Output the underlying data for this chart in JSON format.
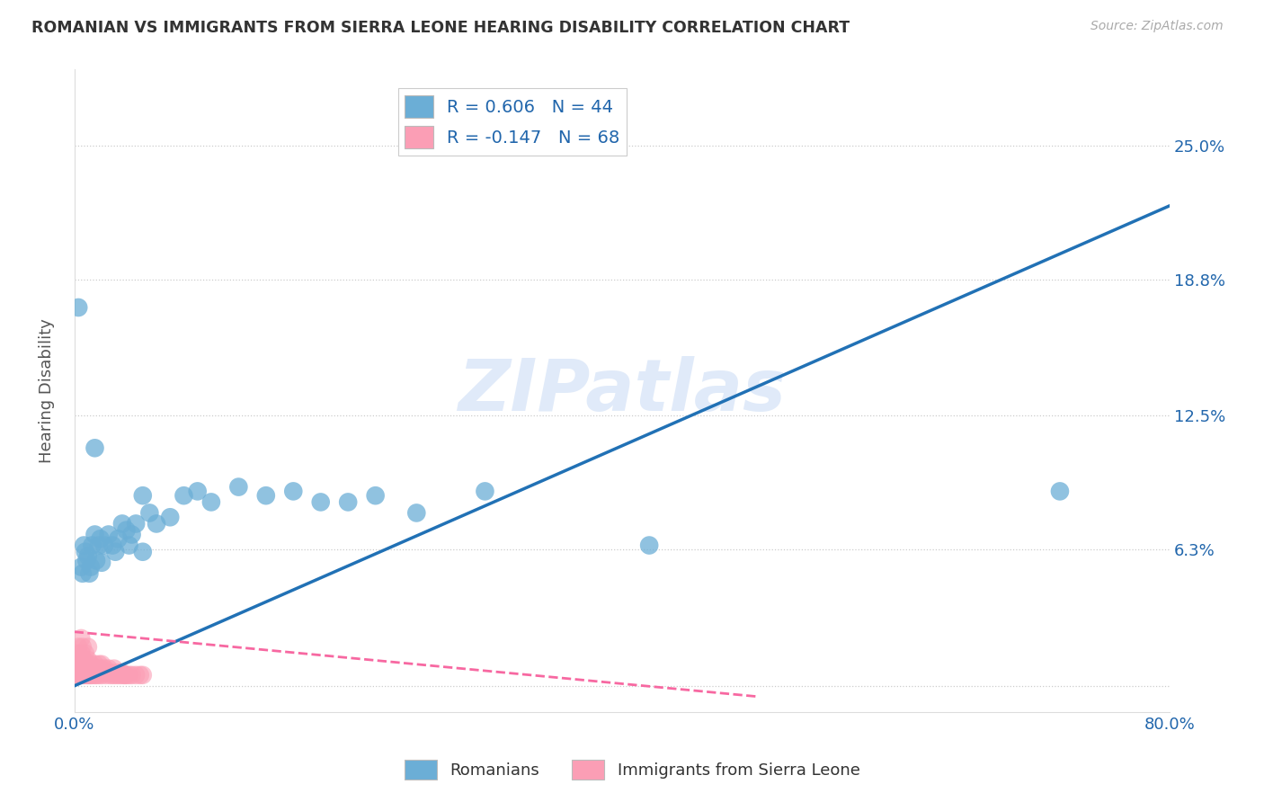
{
  "title": "ROMANIAN VS IMMIGRANTS FROM SIERRA LEONE HEARING DISABILITY CORRELATION CHART",
  "source": "Source: ZipAtlas.com",
  "ylabel": "Hearing Disability",
  "xlim": [
    0.0,
    0.8
  ],
  "ylim": [
    -0.012,
    0.285
  ],
  "yticks": [
    0.0,
    0.063,
    0.125,
    0.188,
    0.25
  ],
  "ytick_labels": [
    "",
    "6.3%",
    "12.5%",
    "18.8%",
    "25.0%"
  ],
  "xticks": [
    0.0,
    0.1,
    0.2,
    0.3,
    0.4,
    0.5,
    0.6,
    0.7,
    0.8
  ],
  "xtick_labels": [
    "0.0%",
    "",
    "",
    "",
    "",
    "",
    "",
    "",
    "80.0%"
  ],
  "blue_color": "#6baed6",
  "pink_color": "#fb9eb5",
  "blue_line_color": "#2171b5",
  "pink_line_color": "#f768a1",
  "text_color": "#2166ac",
  "watermark": "ZIPatlas",
  "blue_R": 0.606,
  "blue_N": 44,
  "pink_R": -0.147,
  "pink_N": 68,
  "blue_line_x": [
    0.0,
    0.8
  ],
  "blue_line_y": [
    0.0,
    0.222
  ],
  "pink_line_x": [
    0.0,
    0.5
  ],
  "pink_line_y": [
    0.025,
    -0.005
  ],
  "blue_x": [
    0.005,
    0.007,
    0.008,
    0.009,
    0.01,
    0.011,
    0.012,
    0.013,
    0.015,
    0.016,
    0.018,
    0.019,
    0.02,
    0.022,
    0.025,
    0.028,
    0.03,
    0.032,
    0.035,
    0.038,
    0.04,
    0.042,
    0.045,
    0.05,
    0.055,
    0.06,
    0.07,
    0.08,
    0.09,
    0.1,
    0.12,
    0.14,
    0.16,
    0.18,
    0.2,
    0.22,
    0.25,
    0.3,
    0.42,
    0.72,
    0.003,
    0.006,
    0.015,
    0.05
  ],
  "blue_y": [
    0.055,
    0.065,
    0.062,
    0.058,
    0.06,
    0.052,
    0.055,
    0.065,
    0.07,
    0.058,
    0.065,
    0.068,
    0.057,
    0.065,
    0.07,
    0.065,
    0.062,
    0.068,
    0.075,
    0.072,
    0.065,
    0.07,
    0.075,
    0.062,
    0.08,
    0.075,
    0.078,
    0.088,
    0.09,
    0.085,
    0.092,
    0.088,
    0.09,
    0.085,
    0.085,
    0.088,
    0.08,
    0.09,
    0.065,
    0.09,
    0.175,
    0.052,
    0.11,
    0.088
  ],
  "pink_x": [
    0.001,
    0.001,
    0.002,
    0.002,
    0.002,
    0.003,
    0.003,
    0.003,
    0.004,
    0.004,
    0.005,
    0.005,
    0.005,
    0.005,
    0.006,
    0.006,
    0.006,
    0.007,
    0.007,
    0.007,
    0.008,
    0.008,
    0.008,
    0.009,
    0.009,
    0.01,
    0.01,
    0.01,
    0.011,
    0.011,
    0.012,
    0.012,
    0.013,
    0.013,
    0.014,
    0.015,
    0.015,
    0.016,
    0.016,
    0.017,
    0.018,
    0.018,
    0.019,
    0.02,
    0.02,
    0.021,
    0.022,
    0.023,
    0.024,
    0.025,
    0.026,
    0.027,
    0.028,
    0.029,
    0.03,
    0.031,
    0.032,
    0.033,
    0.034,
    0.035,
    0.036,
    0.037,
    0.038,
    0.04,
    0.042,
    0.045,
    0.048,
    0.05
  ],
  "pink_y": [
    0.005,
    0.012,
    0.008,
    0.015,
    0.005,
    0.01,
    0.018,
    0.005,
    0.012,
    0.008,
    0.006,
    0.015,
    0.022,
    0.005,
    0.01,
    0.018,
    0.005,
    0.012,
    0.008,
    0.005,
    0.006,
    0.015,
    0.005,
    0.008,
    0.005,
    0.012,
    0.018,
    0.005,
    0.008,
    0.005,
    0.01,
    0.005,
    0.008,
    0.005,
    0.006,
    0.01,
    0.005,
    0.008,
    0.005,
    0.006,
    0.01,
    0.005,
    0.008,
    0.005,
    0.01,
    0.006,
    0.008,
    0.005,
    0.006,
    0.008,
    0.005,
    0.006,
    0.005,
    0.008,
    0.005,
    0.006,
    0.005,
    0.006,
    0.005,
    0.006,
    0.005,
    0.005,
    0.005,
    0.005,
    0.005,
    0.005,
    0.005,
    0.005
  ]
}
